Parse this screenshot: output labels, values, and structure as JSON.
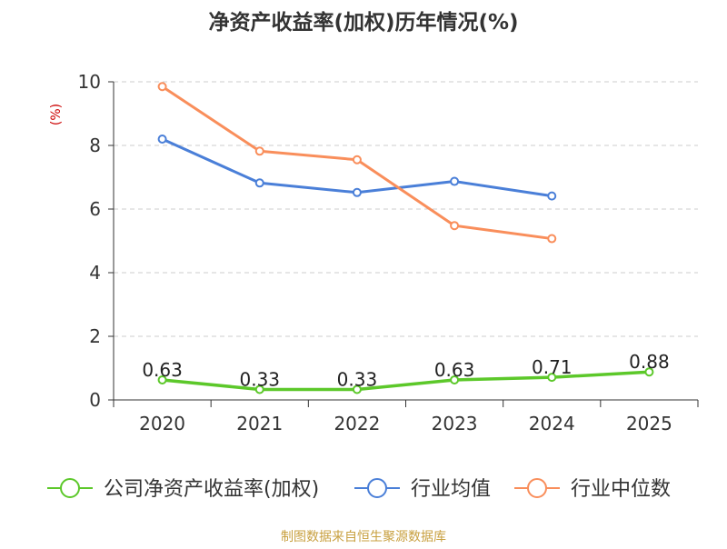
{
  "chart_data": {
    "type": "line",
    "title": "净资产收益率(加权)历年情况(%)",
    "ylabel": "(%)",
    "xlabel": "",
    "categories": [
      "2020",
      "2021",
      "2022",
      "2023",
      "2024",
      "2025"
    ],
    "ylim": [
      0,
      10
    ],
    "yticks": [
      0,
      2,
      4,
      6,
      8,
      10
    ],
    "grid": true,
    "legend_position": "bottom",
    "series": [
      {
        "name": "公司净资产收益率(加权)",
        "color": "#5cc82a",
        "values": [
          0.63,
          0.33,
          0.33,
          0.63,
          0.71,
          0.88
        ],
        "labels": [
          "0.63",
          "0.33",
          "0.33",
          "0.63",
          "0.71",
          "0.88"
        ]
      },
      {
        "name": "行业均值",
        "color": "#4a7fd8",
        "values": [
          8.2,
          6.82,
          6.52,
          6.87,
          6.41,
          null
        ]
      },
      {
        "name": "行业中位数",
        "color": "#f98e5b",
        "values": [
          9.85,
          7.82,
          7.55,
          5.48,
          5.07,
          null
        ]
      }
    ],
    "source": "制图数据来自恒生聚源数据库"
  },
  "colors": {
    "axis": "#333333",
    "grid": "#cccccc",
    "ylabel": "#cc0000",
    "source": "#c8a040"
  }
}
